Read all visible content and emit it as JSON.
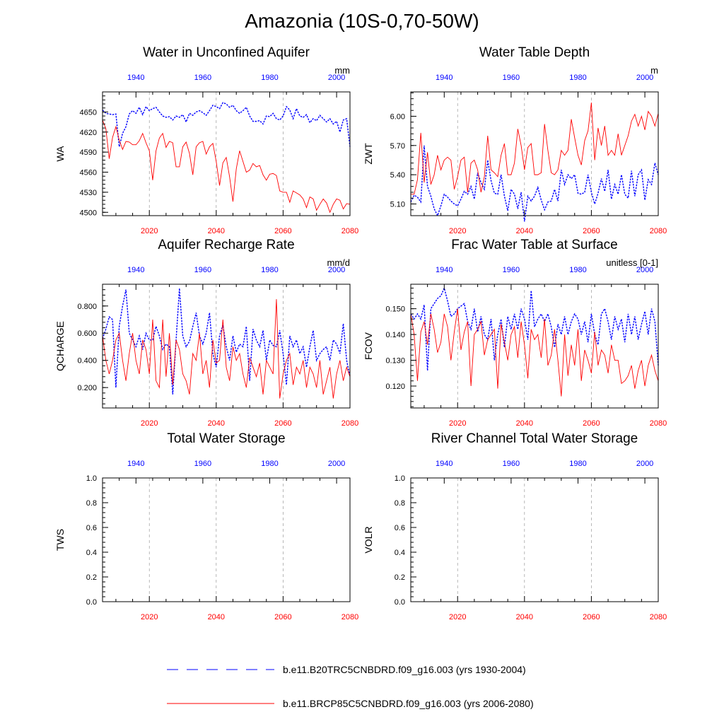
{
  "title": "Amazonia (10S-0,70-50W)",
  "colors": {
    "historical": "#0000ff",
    "future": "#ff0000",
    "axis": "#000000",
    "grid": "#999999"
  },
  "chart_data": [
    {
      "type": "line",
      "title": "Water in Unconfined Aquifer",
      "ylabel": "WA",
      "units": "mm",
      "bottom_axis": {
        "range": [
          2006,
          2080
        ],
        "ticks": [
          2020,
          2040,
          2060,
          2080
        ],
        "tick_labels": [
          "2020",
          "2040",
          "2060",
          "2080"
        ],
        "color": "#ff0000"
      },
      "top_axis": {
        "range": [
          1930,
          2004
        ],
        "ticks": [
          1940,
          1960,
          1980,
          2000
        ],
        "tick_labels": [
          "1940",
          "1960",
          "1980",
          "2000"
        ],
        "color": "#0000ff"
      },
      "ylim": [
        4495,
        4680
      ],
      "yticks": [
        4500,
        4530,
        4560,
        4590,
        4620,
        4650
      ],
      "ytick_labels": [
        "4500",
        "4530",
        "4560",
        "4590",
        "4620",
        "4650"
      ],
      "series": [
        {
          "name": "b.e11.B20TRC5CNBDRD.f09_g16.003 (yrs 1930-2004)",
          "axis": "top",
          "style": "dashed",
          "x_start": 1930,
          "values": [
            4653,
            4648,
            4647,
            4646,
            4647,
            4598,
            4618,
            4628,
            4647,
            4652,
            4648,
            4657,
            4646,
            4658,
            4652,
            4655,
            4657,
            4650,
            4644,
            4642,
            4643,
            4638,
            4644,
            4642,
            4646,
            4635,
            4648,
            4645,
            4650,
            4652,
            4649,
            4645,
            4652,
            4660,
            4658,
            4655,
            4664,
            4662,
            4657,
            4660,
            4652,
            4648,
            4652,
            4657,
            4644,
            4636,
            4636,
            4637,
            4632,
            4644,
            4643,
            4648,
            4640,
            4638,
            4644,
            4658,
            4653,
            4640,
            4655,
            4644,
            4642,
            4646,
            4634,
            4640,
            4637,
            4645,
            4640,
            4635,
            4640,
            4632,
            4636,
            4620,
            4638,
            4640,
            4598
          ]
        },
        {
          "name": "b.e11.BRCP85C5CNBDRD.f09_g16.003 (yrs 2006-2080)",
          "axis": "bottom",
          "style": "solid",
          "x_start": 2006,
          "values": [
            4638,
            4625,
            4580,
            4612,
            4628,
            4608,
            4594,
            4606,
            4605,
            4601,
            4601,
            4607,
            4618,
            4604,
            4592,
            4548,
            4592,
            4611,
            4618,
            4597,
            4606,
            4604,
            4568,
            4568,
            4598,
            4605,
            4588,
            4556,
            4598,
            4604,
            4606,
            4587,
            4598,
            4603,
            4576,
            4540,
            4574,
            4582,
            4553,
            4516,
            4565,
            4592,
            4576,
            4560,
            4563,
            4573,
            4568,
            4570,
            4556,
            4548,
            4557,
            4558,
            4555,
            4532,
            4530,
            4530,
            4515,
            4532,
            4529,
            4526,
            4520,
            4507,
            4523,
            4520,
            4503,
            4512,
            4520,
            4514,
            4500,
            4512,
            4520,
            4518,
            4505,
            4513,
            4512
          ]
        }
      ]
    },
    {
      "type": "line",
      "title": "Water Table Depth",
      "ylabel": "ZWT",
      "units": "m",
      "bottom_axis": {
        "range": [
          2006,
          2080
        ],
        "ticks": [
          2020,
          2040,
          2060,
          2080
        ],
        "tick_labels": [
          "2020",
          "2040",
          "2060",
          "2080"
        ],
        "color": "#ff0000"
      },
      "top_axis": {
        "range": [
          1930,
          2004
        ],
        "ticks": [
          1940,
          1960,
          1980,
          2000
        ],
        "tick_labels": [
          "1940",
          "1960",
          "1980",
          "2000"
        ],
        "color": "#0000ff"
      },
      "ylim": [
        4.98,
        6.25
      ],
      "yticks": [
        5.1,
        5.4,
        5.7,
        6.0
      ],
      "ytick_labels": [
        "5.10",
        "5.40",
        "5.70",
        "6.00"
      ],
      "series": [
        {
          "name": "b.e11.B20TRC5CNBDRD.f09_g16.003 (yrs 1930-2004)",
          "axis": "top",
          "style": "dashed",
          "x_start": 1930,
          "values": [
            5.12,
            5.19,
            5.17,
            5.12,
            5.7,
            5.28,
            5.18,
            5.05,
            4.98,
            5.08,
            5.2,
            5.17,
            5.13,
            5.1,
            5.08,
            5.15,
            5.23,
            5.2,
            5.28,
            5.15,
            5.42,
            5.32,
            5.25,
            5.55,
            5.34,
            5.21,
            5.2,
            5.4,
            5.18,
            5.03,
            5.25,
            5.2,
            5.05,
            5.22,
            4.92,
            5.18,
            5.13,
            5.18,
            5.27,
            5.14,
            5.04,
            5.12,
            5.13,
            5.25,
            5.13,
            5.45,
            5.3,
            5.4,
            5.36,
            5.4,
            5.21,
            5.2,
            5.22,
            5.4,
            5.22,
            5.1,
            5.21,
            5.36,
            5.23,
            5.45,
            5.15,
            5.3,
            5.2,
            5.4,
            5.2,
            5.16,
            5.44,
            5.18,
            5.4,
            5.45,
            5.14,
            5.35,
            5.3,
            5.52,
            5.4
          ]
        },
        {
          "name": "b.e11.BRCP85C5CNBDRD.f09_g16.003 (yrs 2006-2080)",
          "axis": "bottom",
          "style": "solid",
          "x_start": 2006,
          "values": [
            5.2,
            5.2,
            5.35,
            5.83,
            5.32,
            5.63,
            5.3,
            5.4,
            5.6,
            5.45,
            5.55,
            5.58,
            5.55,
            5.25,
            5.38,
            5.55,
            5.58,
            5.22,
            5.52,
            5.55,
            5.45,
            5.22,
            5.38,
            5.8,
            5.45,
            5.42,
            5.38,
            5.6,
            5.72,
            5.4,
            5.4,
            5.52,
            5.87,
            5.7,
            5.45,
            5.68,
            5.72,
            5.4,
            5.4,
            5.42,
            5.92,
            5.65,
            5.42,
            5.4,
            5.45,
            5.65,
            5.6,
            5.65,
            5.97,
            5.78,
            5.6,
            5.5,
            5.75,
            5.85,
            6.14,
            5.55,
            5.88,
            5.7,
            5.9,
            5.6,
            5.65,
            5.6,
            5.82,
            5.6,
            5.7,
            5.8,
            5.95,
            6.02,
            5.9,
            6.0,
            5.86,
            6.05,
            6.0,
            5.9,
            6.03
          ]
        }
      ]
    },
    {
      "type": "line",
      "title": "Aquifer Recharge Rate",
      "ylabel": "QCHARGE",
      "units": "mm/d",
      "bottom_axis": {
        "range": [
          2006,
          2080
        ],
        "ticks": [
          2020,
          2040,
          2060,
          2080
        ],
        "tick_labels": [
          "2020",
          "2040",
          "2060",
          "2080"
        ],
        "color": "#ff0000"
      },
      "top_axis": {
        "range": [
          1930,
          2004
        ],
        "ticks": [
          1940,
          1960,
          1980,
          2000
        ],
        "tick_labels": [
          "1940",
          "1960",
          "1980",
          "2000"
        ],
        "color": "#0000ff"
      },
      "ylim": [
        0.05,
        0.96
      ],
      "yticks": [
        0.2,
        0.4,
        0.6,
        0.8
      ],
      "ytick_labels": [
        "0.200",
        "0.400",
        "0.600",
        "0.800"
      ],
      "series": [
        {
          "name": "b.e11.B20TRC5CNBDRD.f09_g16.003 (yrs 1930-2004)",
          "axis": "top",
          "style": "dashed",
          "x_start": 1930,
          "values": [
            0.56,
            0.63,
            0.72,
            0.7,
            0.2,
            0.65,
            0.8,
            0.92,
            0.6,
            0.55,
            0.5,
            0.58,
            0.48,
            0.6,
            0.55,
            0.55,
            0.65,
            0.58,
            0.48,
            0.52,
            0.5,
            0.15,
            0.55,
            0.93,
            0.58,
            0.5,
            0.54,
            0.65,
            0.75,
            0.58,
            0.52,
            0.6,
            0.75,
            0.45,
            0.35,
            0.58,
            0.66,
            0.5,
            0.4,
            0.58,
            0.46,
            0.52,
            0.5,
            0.65,
            0.25,
            0.63,
            0.55,
            0.5,
            0.62,
            0.4,
            0.55,
            0.51,
            0.5,
            0.62,
            0.45,
            0.22,
            0.58,
            0.5,
            0.55,
            0.45,
            0.5,
            0.35,
            0.5,
            0.62,
            0.4,
            0.45,
            0.48,
            0.5,
            0.4,
            0.55,
            0.52,
            0.45,
            0.67,
            0.4,
            0.28
          ]
        },
        {
          "name": "b.e11.BRCP85C5CNBDRD.f09_g16.003 (yrs 2006-2080)",
          "axis": "bottom",
          "style": "solid",
          "x_start": 2006,
          "values": [
            0.58,
            0.4,
            0.3,
            0.4,
            0.55,
            0.6,
            0.4,
            0.25,
            0.45,
            0.6,
            0.4,
            0.3,
            0.55,
            0.48,
            0.3,
            0.7,
            0.25,
            0.2,
            0.7,
            0.28,
            0.6,
            0.22,
            0.55,
            0.48,
            0.3,
            0.25,
            0.15,
            0.45,
            0.4,
            0.6,
            0.3,
            0.4,
            0.2,
            0.55,
            0.38,
            0.4,
            0.7,
            0.35,
            0.25,
            0.5,
            0.4,
            0.45,
            0.3,
            0.2,
            0.42,
            0.35,
            0.28,
            0.38,
            0.15,
            0.4,
            0.35,
            0.3,
            0.85,
            0.12,
            0.3,
            0.4,
            0.45,
            0.22,
            0.35,
            0.3,
            0.4,
            0.2,
            0.35,
            0.3,
            0.2,
            0.4,
            0.15,
            0.25,
            0.35,
            0.12,
            0.3,
            0.4,
            0.25,
            0.35,
            0.28
          ]
        }
      ]
    },
    {
      "type": "line",
      "title": "Frac Water Table at Surface",
      "ylabel": "FCOV",
      "units": "unitless [0-1]",
      "bottom_axis": {
        "range": [
          2006,
          2080
        ],
        "ticks": [
          2020,
          2040,
          2060,
          2080
        ],
        "tick_labels": [
          "2020",
          "2040",
          "2060",
          "2080"
        ],
        "color": "#ff0000"
      },
      "top_axis": {
        "range": [
          1930,
          2004
        ],
        "ticks": [
          1940,
          1960,
          1980,
          2000
        ],
        "tick_labels": [
          "1940",
          "1960",
          "1980",
          "2000"
        ],
        "color": "#0000ff"
      },
      "ylim": [
        0.1115,
        0.1595
      ],
      "yticks": [
        0.12,
        0.13,
        0.14,
        0.15
      ],
      "ytick_labels": [
        "0.120",
        "0.130",
        "0.140",
        "0.150"
      ],
      "series": [
        {
          "name": "b.e11.B20TRC5CNBDRD.f09_g16.003 (yrs 1930-2004)",
          "axis": "top",
          "style": "dashed",
          "x_start": 1930,
          "values": [
            0.148,
            0.146,
            0.148,
            0.146,
            0.1515,
            0.126,
            0.15,
            0.152,
            0.154,
            0.155,
            0.158,
            0.153,
            0.147,
            0.148,
            0.15,
            0.151,
            0.152,
            0.145,
            0.142,
            0.15,
            0.141,
            0.147,
            0.14,
            0.138,
            0.146,
            0.13,
            0.14,
            0.146,
            0.135,
            0.147,
            0.142,
            0.148,
            0.142,
            0.15,
            0.146,
            0.138,
            0.157,
            0.143,
            0.146,
            0.148,
            0.145,
            0.148,
            0.143,
            0.135,
            0.144,
            0.14,
            0.147,
            0.14,
            0.145,
            0.148,
            0.146,
            0.14,
            0.145,
            0.137,
            0.148,
            0.14,
            0.136,
            0.148,
            0.15,
            0.145,
            0.138,
            0.147,
            0.142,
            0.146,
            0.137,
            0.148,
            0.14,
            0.147,
            0.138,
            0.144,
            0.149,
            0.14,
            0.15,
            0.145,
            0.128
          ]
        },
        {
          "name": "b.e11.BRCP85C5CNBDRD.f09_g16.003 (yrs 2006-2080)",
          "axis": "bottom",
          "style": "solid",
          "x_start": 2006,
          "values": [
            0.148,
            0.14,
            0.122,
            0.141,
            0.145,
            0.136,
            0.148,
            0.142,
            0.133,
            0.137,
            0.148,
            0.143,
            0.13,
            0.141,
            0.15,
            0.134,
            0.141,
            0.145,
            0.12,
            0.14,
            0.142,
            0.145,
            0.132,
            0.138,
            0.14,
            0.142,
            0.119,
            0.144,
            0.137,
            0.13,
            0.14,
            0.143,
            0.131,
            0.145,
            0.136,
            0.123,
            0.142,
            0.138,
            0.14,
            0.131,
            0.146,
            0.128,
            0.132,
            0.142,
            0.13,
            0.116,
            0.14,
            0.124,
            0.136,
            0.128,
            0.142,
            0.122,
            0.134,
            0.13,
            0.125,
            0.141,
            0.128,
            0.134,
            0.132,
            0.125,
            0.136,
            0.13,
            0.13,
            0.121,
            0.122,
            0.124,
            0.128,
            0.119,
            0.126,
            0.13,
            0.12,
            0.128,
            0.132,
            0.126,
            0.122
          ]
        }
      ]
    },
    {
      "type": "line",
      "title": "Total Water Storage",
      "ylabel": "TWS",
      "units": "",
      "bottom_axis": {
        "range": [
          2006,
          2080
        ],
        "ticks": [
          2020,
          2040,
          2060,
          2080
        ],
        "tick_labels": [
          "2020",
          "2040",
          "2060",
          "2080"
        ],
        "color": "#ff0000"
      },
      "top_axis": {
        "range": [
          1930,
          2004
        ],
        "ticks": [
          1940,
          1960,
          1980,
          2000
        ],
        "tick_labels": [
          "1940",
          "1960",
          "1980",
          "2000"
        ],
        "color": "#0000ff"
      },
      "ylim": [
        0,
        1
      ],
      "yticks": [
        0,
        0.2,
        0.4,
        0.6,
        0.8,
        1.0
      ],
      "ytick_labels": [
        "0.0",
        "0.2",
        "0.4",
        "0.6",
        "0.8",
        "1.0"
      ],
      "series": []
    },
    {
      "type": "line",
      "title": "River Channel Total Water Storage",
      "ylabel": "VOLR",
      "units": "",
      "bottom_axis": {
        "range": [
          2006,
          2080
        ],
        "ticks": [
          2020,
          2040,
          2060,
          2080
        ],
        "tick_labels": [
          "2020",
          "2040",
          "2060",
          "2080"
        ],
        "color": "#ff0000"
      },
      "top_axis": {
        "range": [
          1930,
          2004
        ],
        "ticks": [
          1940,
          1960,
          1980,
          2000
        ],
        "tick_labels": [
          "1940",
          "1960",
          "1980",
          "2000"
        ],
        "color": "#0000ff"
      },
      "ylim": [
        0,
        1
      ],
      "yticks": [
        0,
        0.2,
        0.4,
        0.6,
        0.8,
        1.0
      ],
      "ytick_labels": [
        "0.0",
        "0.2",
        "0.4",
        "0.6",
        "0.8",
        "1.0"
      ],
      "series": []
    }
  ],
  "legend": [
    {
      "label": "b.e11.B20TRC5CNBDRD.f09_g16.003 (yrs 1930-2004)",
      "color": "#0000ff",
      "style": "dashed"
    },
    {
      "label": "b.e11.BRCP85C5CNBDRD.f09_g16.003 (yrs 2006-2080)",
      "color": "#ff0000",
      "style": "solid"
    }
  ]
}
